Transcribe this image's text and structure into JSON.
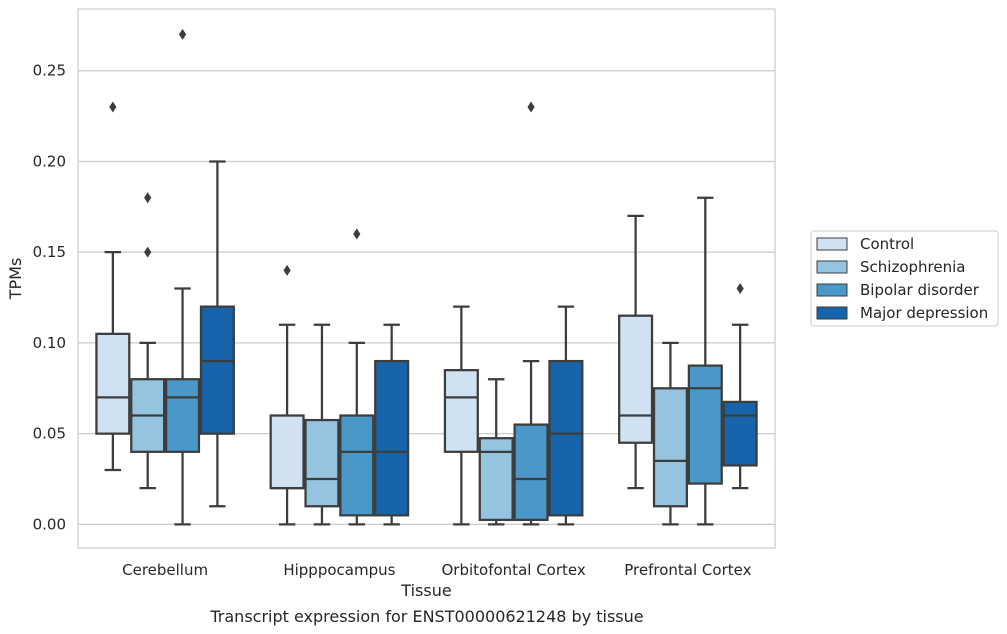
{
  "caption": "Transcript expression for ENST00000621248 by tissue",
  "chart_data": {
    "type": "box",
    "xlabel": "Tissue",
    "ylabel": "TPMs",
    "ylim": [
      -0.013,
      0.284
    ],
    "yticks": [
      0.0,
      0.05,
      0.1,
      0.15,
      0.2,
      0.25
    ],
    "ytick_labels": [
      "0.00",
      "0.05",
      "0.10",
      "0.15",
      "0.20",
      "0.25"
    ],
    "grid": true,
    "legend_position": "right",
    "categories": [
      "Cerebellum",
      "Hipppocampus",
      "Orbitofontal Cortex",
      "Prefrontal Cortex"
    ],
    "series": [
      {
        "name": "Control",
        "color": "#d0e1f2",
        "boxes": [
          {
            "whislo": 0.03,
            "q1": 0.05,
            "med": 0.07,
            "q3": 0.105,
            "whishi": 0.15,
            "fliers": [
              0.23
            ]
          },
          {
            "whislo": 0.0,
            "q1": 0.02,
            "med": 0.02,
            "q3": 0.06,
            "whishi": 0.11,
            "fliers": [
              0.14
            ]
          },
          {
            "whislo": 0.0,
            "q1": 0.04,
            "med": 0.07,
            "q3": 0.085,
            "whishi": 0.12,
            "fliers": []
          },
          {
            "whislo": 0.02,
            "q1": 0.045,
            "med": 0.06,
            "q3": 0.115,
            "whishi": 0.17,
            "fliers": []
          }
        ]
      },
      {
        "name": "Schizophrenia",
        "color": "#94c4df",
        "boxes": [
          {
            "whislo": 0.02,
            "q1": 0.04,
            "med": 0.06,
            "q3": 0.08,
            "whishi": 0.1,
            "fliers": [
              0.15,
              0.18
            ]
          },
          {
            "whislo": 0.0,
            "q1": 0.01,
            "med": 0.025,
            "q3": 0.0575,
            "whishi": 0.11,
            "fliers": []
          },
          {
            "whislo": 0.0,
            "q1": 0.0025,
            "med": 0.04,
            "q3": 0.0475,
            "whishi": 0.08,
            "fliers": []
          },
          {
            "whislo": 0.0,
            "q1": 0.01,
            "med": 0.035,
            "q3": 0.075,
            "whishi": 0.1,
            "fliers": []
          }
        ]
      },
      {
        "name": "Bipolar disorder",
        "color": "#4a98c9",
        "boxes": [
          {
            "whislo": 0.0,
            "q1": 0.04,
            "med": 0.07,
            "q3": 0.08,
            "whishi": 0.13,
            "fliers": [
              0.27
            ]
          },
          {
            "whislo": 0.0,
            "q1": 0.005,
            "med": 0.04,
            "q3": 0.06,
            "whishi": 0.1,
            "fliers": [
              0.16
            ]
          },
          {
            "whislo": 0.0,
            "q1": 0.0025,
            "med": 0.025,
            "q3": 0.055,
            "whishi": 0.09,
            "fliers": [
              0.23
            ]
          },
          {
            "whislo": 0.0,
            "q1": 0.0225,
            "med": 0.075,
            "q3": 0.0875,
            "whishi": 0.18,
            "fliers": []
          }
        ]
      },
      {
        "name": "Major depression",
        "color": "#1764ab",
        "boxes": [
          {
            "whislo": 0.01,
            "q1": 0.05,
            "med": 0.09,
            "q3": 0.12,
            "whishi": 0.2,
            "fliers": []
          },
          {
            "whislo": 0.0,
            "q1": 0.005,
            "med": 0.04,
            "q3": 0.09,
            "whishi": 0.11,
            "fliers": []
          },
          {
            "whislo": 0.0,
            "q1": 0.005,
            "med": 0.05,
            "q3": 0.09,
            "whishi": 0.12,
            "fliers": []
          },
          {
            "whislo": 0.02,
            "q1": 0.0325,
            "med": 0.06,
            "q3": 0.0675,
            "whishi": 0.11,
            "fliers": [
              0.13
            ]
          }
        ]
      }
    ]
  }
}
